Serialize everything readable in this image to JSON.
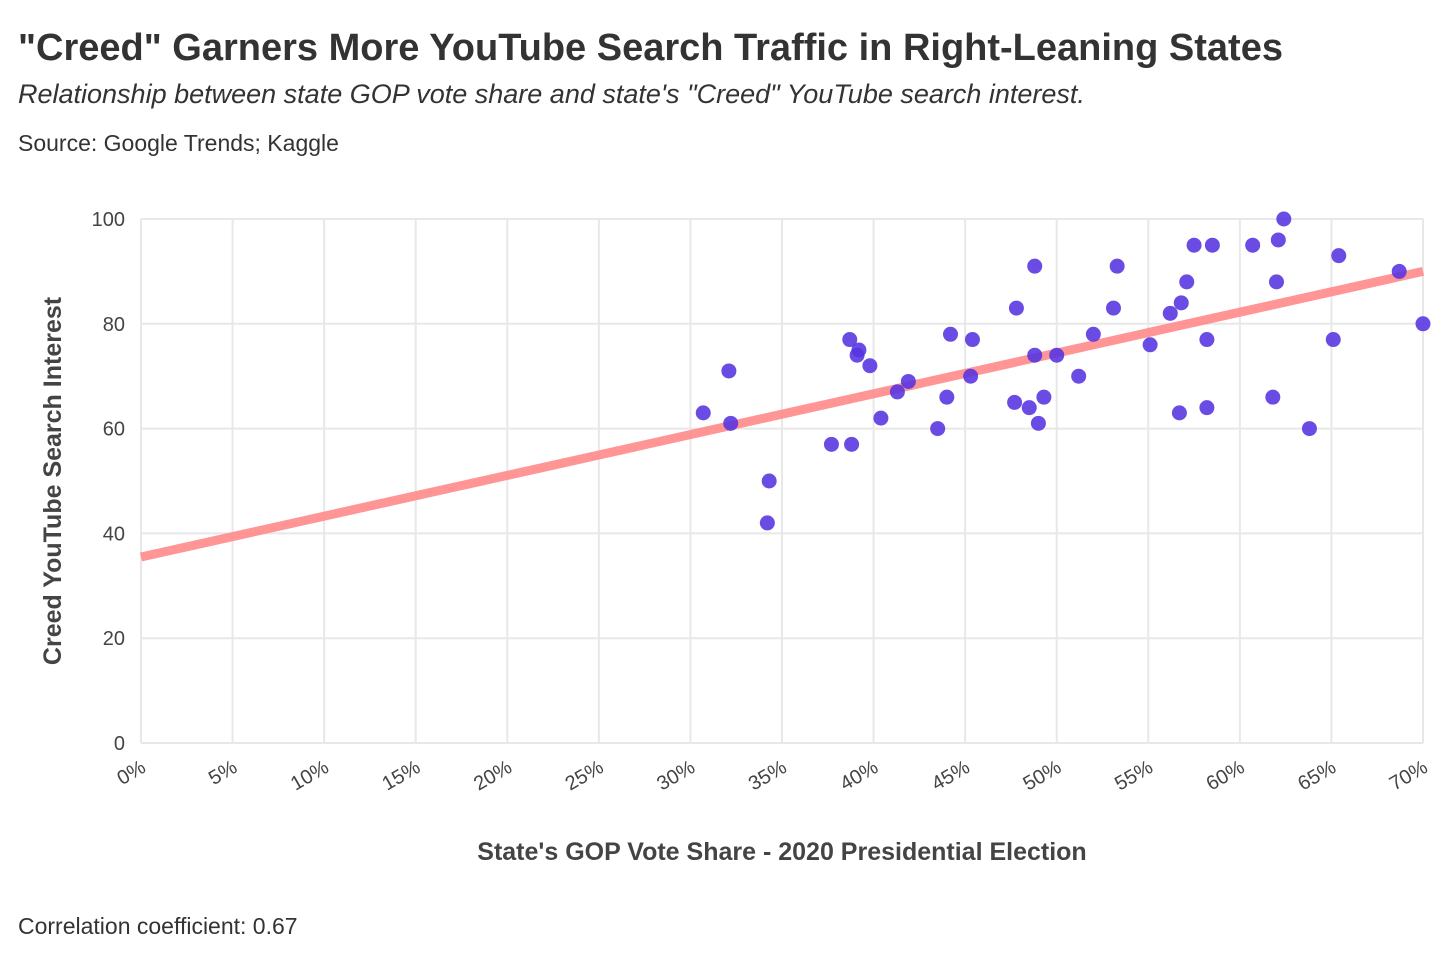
{
  "chart_data": {
    "type": "scatter",
    "title": "\"Creed\" Garners More YouTube Search Traffic in Right-Leaning States",
    "subtitle": "Relationship between state GOP vote share and state's \"Creed\" YouTube search interest.",
    "source": "Source: Google Trends; Kaggle",
    "xlabel": "State's GOP Vote Share - 2020 Presidential Election",
    "ylabel": "Creed YouTube Search Interest",
    "footer": "Correlation coefficient: 0.67",
    "xlim": [
      0,
      70
    ],
    "ylim": [
      0,
      100
    ],
    "x_ticks": [
      0,
      5,
      10,
      15,
      20,
      25,
      30,
      35,
      40,
      45,
      50,
      55,
      60,
      65,
      70
    ],
    "x_tick_labels": [
      "0%",
      "5%",
      "10%",
      "15%",
      "20%",
      "25%",
      "30%",
      "35%",
      "40%",
      "45%",
      "50%",
      "55%",
      "60%",
      "65%",
      "70%"
    ],
    "y_ticks": [
      0,
      20,
      40,
      60,
      80,
      100
    ],
    "y_tick_labels": [
      "0",
      "20",
      "40",
      "60",
      "80",
      "100"
    ],
    "grid": true,
    "point_color": "#5533e0",
    "trend_color": "#ff8a8a",
    "trendline": {
      "x": [
        0,
        70
      ],
      "y": [
        35.5,
        90
      ]
    },
    "points": [
      [
        30.7,
        63
      ],
      [
        32.1,
        71
      ],
      [
        32.2,
        61
      ],
      [
        34.3,
        50
      ],
      [
        34.2,
        42
      ],
      [
        37.7,
        57
      ],
      [
        38.8,
        57
      ],
      [
        38.7,
        77
      ],
      [
        39.2,
        75
      ],
      [
        39.1,
        74
      ],
      [
        39.8,
        72
      ],
      [
        40.4,
        62
      ],
      [
        41.3,
        67
      ],
      [
        41.9,
        69
      ],
      [
        43.5,
        60
      ],
      [
        44.0,
        66
      ],
      [
        44.2,
        78
      ],
      [
        45.4,
        77
      ],
      [
        45.3,
        70
      ],
      [
        47.8,
        83
      ],
      [
        47.7,
        65
      ],
      [
        48.5,
        64
      ],
      [
        48.8,
        91
      ],
      [
        48.8,
        74
      ],
      [
        49.0,
        61
      ],
      [
        49.3,
        66
      ],
      [
        50.0,
        74
      ],
      [
        51.2,
        70
      ],
      [
        52.0,
        78
      ],
      [
        53.1,
        83
      ],
      [
        53.3,
        91
      ],
      [
        55.1,
        76
      ],
      [
        56.2,
        82
      ],
      [
        56.8,
        84
      ],
      [
        56.7,
        63
      ],
      [
        57.1,
        88
      ],
      [
        57.5,
        95
      ],
      [
        58.2,
        64
      ],
      [
        58.2,
        77
      ],
      [
        58.5,
        95
      ],
      [
        60.7,
        95
      ],
      [
        62.1,
        96
      ],
      [
        62.0,
        88
      ],
      [
        61.8,
        66
      ],
      [
        62.4,
        100
      ],
      [
        63.8,
        60
      ],
      [
        65.1,
        77
      ],
      [
        65.4,
        93
      ],
      [
        68.7,
        90
      ],
      [
        70.0,
        80
      ]
    ]
  }
}
